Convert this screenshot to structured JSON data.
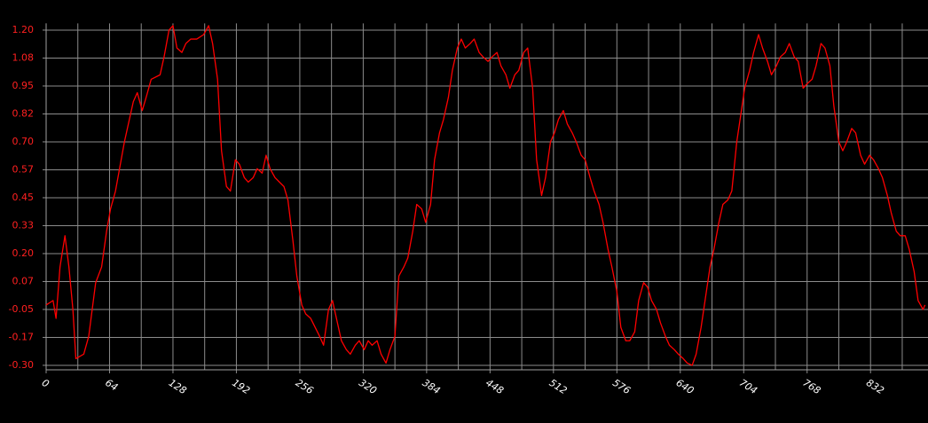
{
  "chart_data": {
    "type": "line",
    "color": "#ff0000",
    "grid": true,
    "xlim": [
      0,
      890
    ],
    "ylim": [
      -0.32,
      1.23
    ],
    "xticks": [
      0,
      64,
      128,
      192,
      256,
      320,
      384,
      448,
      512,
      576,
      640,
      704,
      768,
      832
    ],
    "x_minor_ticks": [
      32,
      96,
      160,
      224,
      288,
      352,
      416,
      480,
      544,
      608,
      672,
      736,
      800,
      864
    ],
    "yticks": [
      {
        "value": 1.2,
        "label": "1.20"
      },
      {
        "value": 1.075,
        "label": "1.08"
      },
      0.95,
      {
        "value": 0.825,
        "label": "0.82"
      },
      {
        "value": 0.7,
        "label": "0.70"
      },
      {
        "value": 0.575,
        "label": "0.57"
      },
      0.45,
      {
        "value": 0.325,
        "label": "0.33"
      },
      {
        "value": 0.2,
        "label": "0.20"
      },
      {
        "value": 0.075,
        "label": "0.07"
      },
      -0.05,
      {
        "value": -0.175,
        "label": "-0.17"
      },
      {
        "value": -0.3,
        "label": "-0.30"
      }
    ],
    "x": [
      0,
      7,
      10,
      14,
      19,
      23,
      27,
      30,
      38,
      43,
      50,
      56,
      61,
      65,
      70,
      79,
      88,
      92,
      97,
      101,
      106,
      115,
      119,
      124,
      128,
      132,
      137,
      141,
      146,
      152,
      159,
      164,
      168,
      173,
      177,
      182,
      186,
      191,
      195,
      200,
      204,
      209,
      213,
      218,
      222,
      226,
      231,
      240,
      244,
      249,
      253,
      258,
      262,
      267,
      276,
      280,
      285,
      289,
      294,
      298,
      303,
      307,
      312,
      316,
      321,
      325,
      329,
      334,
      338,
      343,
      347,
      352,
      356,
      361,
      365,
      370,
      374,
      379,
      383,
      388,
      392,
      397,
      401,
      406,
      410,
      415,
      419,
      423,
      428,
      432,
      437,
      441,
      446,
      450,
      455,
      459,
      464,
      468,
      473,
      477,
      482,
      486,
      491,
      495,
      500,
      504,
      509,
      513,
      517,
      522,
      526,
      531,
      535,
      540,
      544,
      549,
      553,
      558,
      562,
      567,
      571,
      576,
      580,
      585,
      589,
      594,
      598,
      603,
      607,
      611,
      616,
      620,
      625,
      629,
      634,
      638,
      643,
      647,
      652,
      656,
      661,
      665,
      670,
      674,
      679,
      683,
      688,
      692,
      697,
      701,
      705,
      710,
      714,
      719,
      723,
      728,
      732,
      737,
      741,
      746,
      750,
      755,
      759,
      764,
      768,
      773,
      777,
      782,
      786,
      791,
      795,
      800,
      804,
      808,
      813,
      817,
      822,
      826,
      831,
      835,
      840,
      844,
      849,
      853,
      858,
      862,
      867,
      871,
      876,
      880,
      885,
      887
    ],
    "values": [
      -0.03,
      -0.01,
      -0.09,
      0.14,
      0.28,
      0.14,
      -0.05,
      -0.27,
      -0.25,
      -0.17,
      0.07,
      0.14,
      0.3,
      0.4,
      0.48,
      0.7,
      0.88,
      0.92,
      0.84,
      0.9,
      0.98,
      1.0,
      1.08,
      1.2,
      1.22,
      1.12,
      1.1,
      1.14,
      1.16,
      1.16,
      1.18,
      1.22,
      1.14,
      0.98,
      0.66,
      0.5,
      0.48,
      0.62,
      0.6,
      0.54,
      0.52,
      0.54,
      0.58,
      0.56,
      0.64,
      0.58,
      0.54,
      0.5,
      0.44,
      0.26,
      0.1,
      -0.03,
      -0.07,
      -0.09,
      -0.17,
      -0.21,
      -0.05,
      -0.01,
      -0.11,
      -0.19,
      -0.23,
      -0.25,
      -0.21,
      -0.19,
      -0.23,
      -0.19,
      -0.21,
      -0.19,
      -0.25,
      -0.29,
      -0.23,
      -0.17,
      0.1,
      0.14,
      0.18,
      0.3,
      0.42,
      0.4,
      0.34,
      0.42,
      0.62,
      0.74,
      0.8,
      0.9,
      1.02,
      1.12,
      1.16,
      1.12,
      1.14,
      1.16,
      1.1,
      1.08,
      1.06,
      1.08,
      1.1,
      1.04,
      1.0,
      0.94,
      1.0,
      1.02,
      1.1,
      1.12,
      0.94,
      0.62,
      0.46,
      0.54,
      0.7,
      0.74,
      0.8,
      0.84,
      0.78,
      0.74,
      0.7,
      0.64,
      0.62,
      0.54,
      0.48,
      0.42,
      0.34,
      0.22,
      0.14,
      0.03,
      -0.13,
      -0.19,
      -0.19,
      -0.15,
      -0.01,
      0.07,
      0.05,
      -0.01,
      -0.05,
      -0.11,
      -0.17,
      -0.21,
      -0.23,
      -0.25,
      -0.27,
      -0.29,
      -0.3,
      -0.25,
      -0.13,
      -0.01,
      0.14,
      0.22,
      0.34,
      0.42,
      0.44,
      0.48,
      0.7,
      0.82,
      0.94,
      1.02,
      1.1,
      1.18,
      1.12,
      1.06,
      1.0,
      1.04,
      1.08,
      1.1,
      1.14,
      1.08,
      1.06,
      0.94,
      0.96,
      0.98,
      1.04,
      1.14,
      1.12,
      1.04,
      0.86,
      0.7,
      0.66,
      0.7,
      0.76,
      0.74,
      0.64,
      0.6,
      0.64,
      0.62,
      0.58,
      0.54,
      0.46,
      0.38,
      0.3,
      0.28,
      0.28,
      0.22,
      0.12,
      -0.01,
      -0.05,
      -0.03
    ]
  }
}
